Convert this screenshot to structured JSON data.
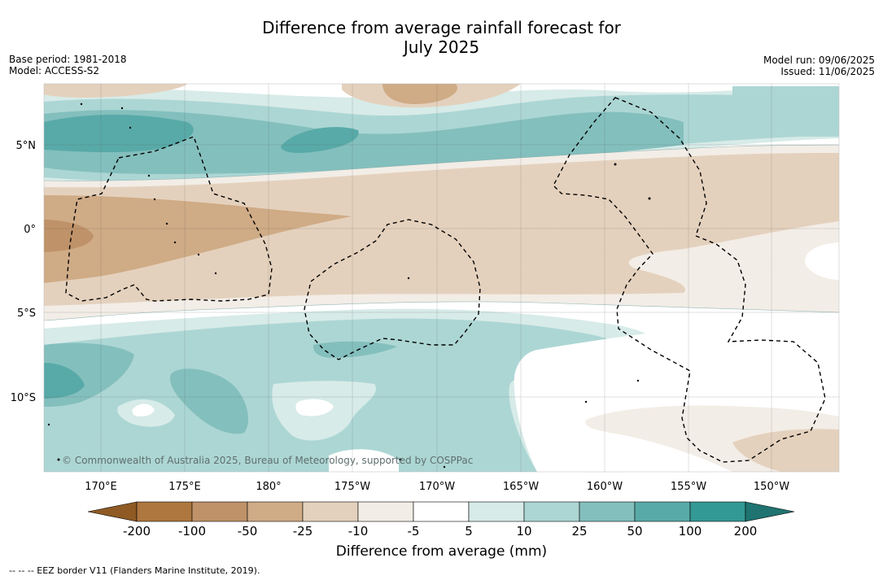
{
  "title": {
    "line1": "Difference from average rainfall forecast for",
    "line2": "July 2025"
  },
  "meta_left": {
    "base_period": "Base period: 1981-2018",
    "model": "Model: ACCESS-S2"
  },
  "meta_right": {
    "model_run": "Model run: 09/06/2025",
    "issued": "Issued: 11/06/2025"
  },
  "lat_labels": [
    "5°N",
    "0°",
    "5°S",
    "10°S"
  ],
  "lon_labels": [
    "170°E",
    "175°E",
    "180°",
    "175°W",
    "170°W",
    "165°W",
    "160°W",
    "155°W",
    "150°W"
  ],
  "copyright": "© Commonwealth of Australia 2025, Bureau of Meteorology, supported by COSPPac",
  "colorbar": {
    "ticks": [
      "-200",
      "-100",
      "-50",
      "-25",
      "-10",
      "-5",
      "5",
      "10",
      "25",
      "50",
      "100",
      "200"
    ],
    "colors": {
      "below_min": "#8f5a24",
      "bins": [
        "#ad773f",
        "#bf9269",
        "#cfab86",
        "#e4d1bd",
        "#f2ede6",
        "#ffffff",
        "#d7ebe8",
        "#acd6d4",
        "#83bfbd",
        "#58aaa8",
        "#339994"
      ],
      "above_max": "#1f7370"
    },
    "label": "Difference from average (mm)"
  },
  "footnote": "--  --  -- EEZ border V11 (Flanders Marine Institute, 2019)."
}
